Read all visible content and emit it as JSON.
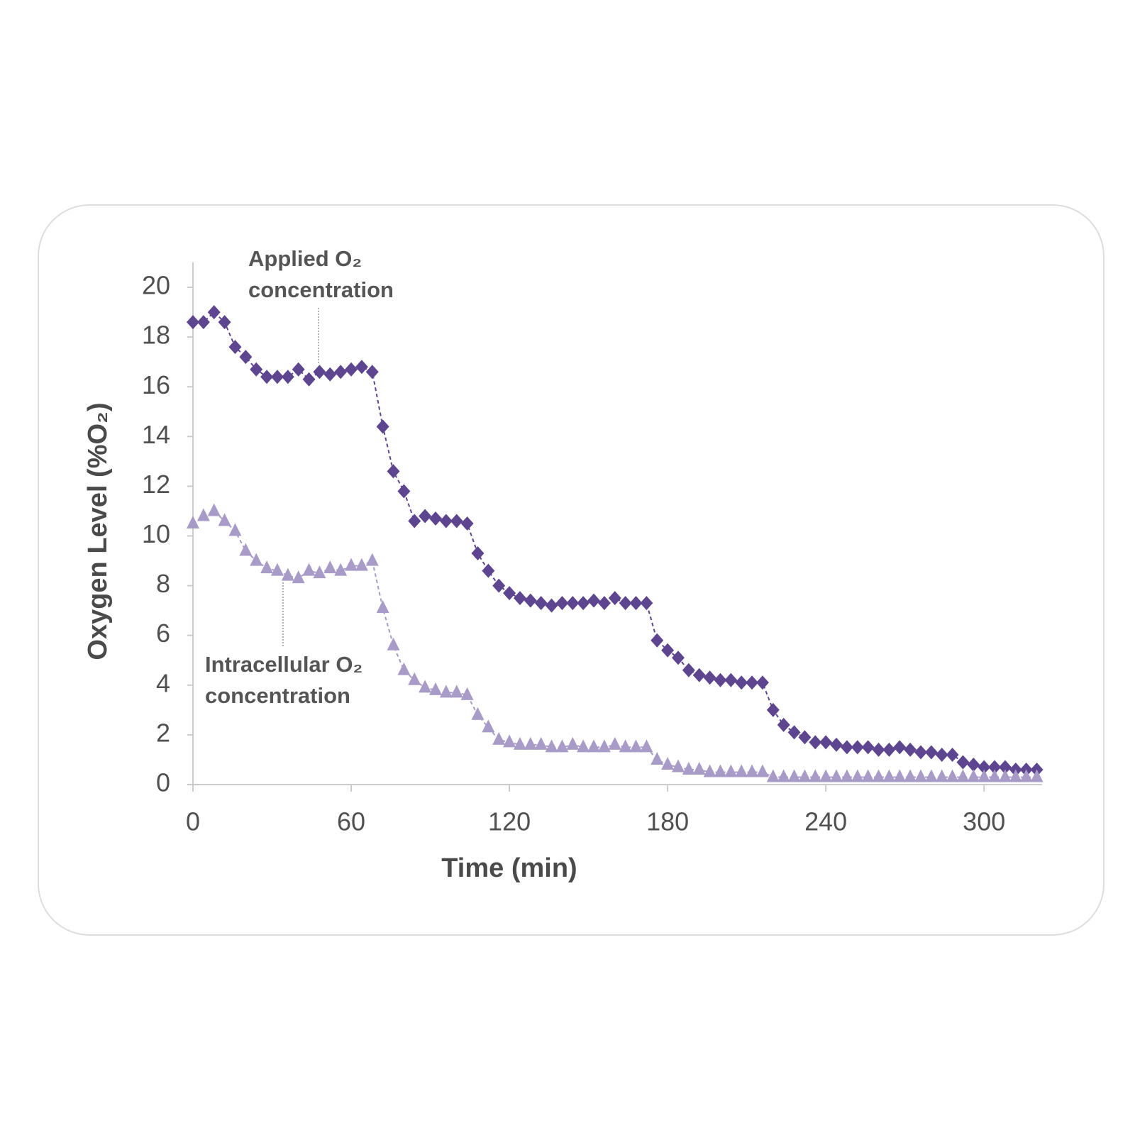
{
  "chart_data": {
    "type": "line",
    "x_label": "Time (min)",
    "y_label": "Oxygen Level  (%O₂)",
    "annotations": [
      {
        "lines": [
          "Applied O₂",
          "concentration"
        ]
      },
      {
        "lines": [
          "Intracellular O₂",
          "concentration"
        ]
      }
    ],
    "x": [
      0,
      4,
      8,
      12,
      16,
      20,
      24,
      28,
      32,
      36,
      40,
      44,
      48,
      52,
      56,
      60,
      64,
      68,
      72,
      76,
      80,
      84,
      88,
      92,
      96,
      100,
      104,
      108,
      112,
      116,
      120,
      124,
      128,
      132,
      136,
      140,
      144,
      148,
      152,
      156,
      160,
      164,
      168,
      172,
      176,
      180,
      184,
      188,
      192,
      196,
      200,
      204,
      208,
      212,
      216,
      220,
      224,
      228,
      232,
      236,
      240,
      244,
      248,
      252,
      256,
      260,
      264,
      268,
      272,
      276,
      280,
      284,
      288,
      292,
      296,
      300,
      304,
      308,
      312,
      316,
      320
    ],
    "series": [
      {
        "color": "#5e4590",
        "marker": "diamond",
        "values": [
          18.6,
          18.6,
          19.0,
          18.6,
          17.6,
          17.2,
          16.7,
          16.4,
          16.4,
          16.4,
          16.7,
          16.3,
          16.6,
          16.5,
          16.6,
          16.7,
          16.8,
          16.6,
          14.4,
          12.6,
          11.8,
          10.6,
          10.8,
          10.7,
          10.6,
          10.6,
          10.5,
          9.3,
          8.6,
          8.0,
          7.7,
          7.5,
          7.4,
          7.3,
          7.2,
          7.3,
          7.3,
          7.3,
          7.4,
          7.3,
          7.5,
          7.3,
          7.3,
          7.3,
          5.8,
          5.4,
          5.1,
          4.6,
          4.4,
          4.3,
          4.2,
          4.2,
          4.1,
          4.1,
          4.1,
          3.0,
          2.4,
          2.1,
          1.9,
          1.7,
          1.7,
          1.6,
          1.5,
          1.5,
          1.5,
          1.4,
          1.4,
          1.5,
          1.4,
          1.3,
          1.3,
          1.2,
          1.2,
          0.9,
          0.8,
          0.7,
          0.7,
          0.7,
          0.6,
          0.6,
          0.6
        ]
      },
      {
        "color": "#a99bc8",
        "marker": "triangle",
        "values": [
          10.5,
          10.8,
          11.0,
          10.6,
          10.2,
          9.4,
          9.0,
          8.7,
          8.6,
          8.4,
          8.3,
          8.6,
          8.5,
          8.7,
          8.6,
          8.8,
          8.8,
          9.0,
          7.1,
          5.6,
          4.6,
          4.2,
          3.9,
          3.8,
          3.7,
          3.7,
          3.6,
          2.8,
          2.3,
          1.8,
          1.7,
          1.6,
          1.6,
          1.6,
          1.5,
          1.5,
          1.6,
          1.5,
          1.5,
          1.5,
          1.6,
          1.5,
          1.5,
          1.5,
          1.0,
          0.8,
          0.7,
          0.6,
          0.6,
          0.5,
          0.5,
          0.5,
          0.5,
          0.5,
          0.5,
          0.3,
          0.3,
          0.3,
          0.3,
          0.3,
          0.3,
          0.3,
          0.3,
          0.3,
          0.3,
          0.3,
          0.3,
          0.3,
          0.3,
          0.3,
          0.3,
          0.3,
          0.3,
          0.3,
          0.3,
          0.3,
          0.3,
          0.3,
          0.3,
          0.3,
          0.3
        ]
      }
    ],
    "xlim": [
      0,
      322
    ],
    "xticks": [
      0,
      60,
      120,
      180,
      240,
      300
    ],
    "ylim": [
      0,
      21
    ],
    "yticks": [
      0,
      2,
      4,
      6,
      8,
      10,
      12,
      14,
      16,
      18,
      20
    ],
    "grid": false
  }
}
